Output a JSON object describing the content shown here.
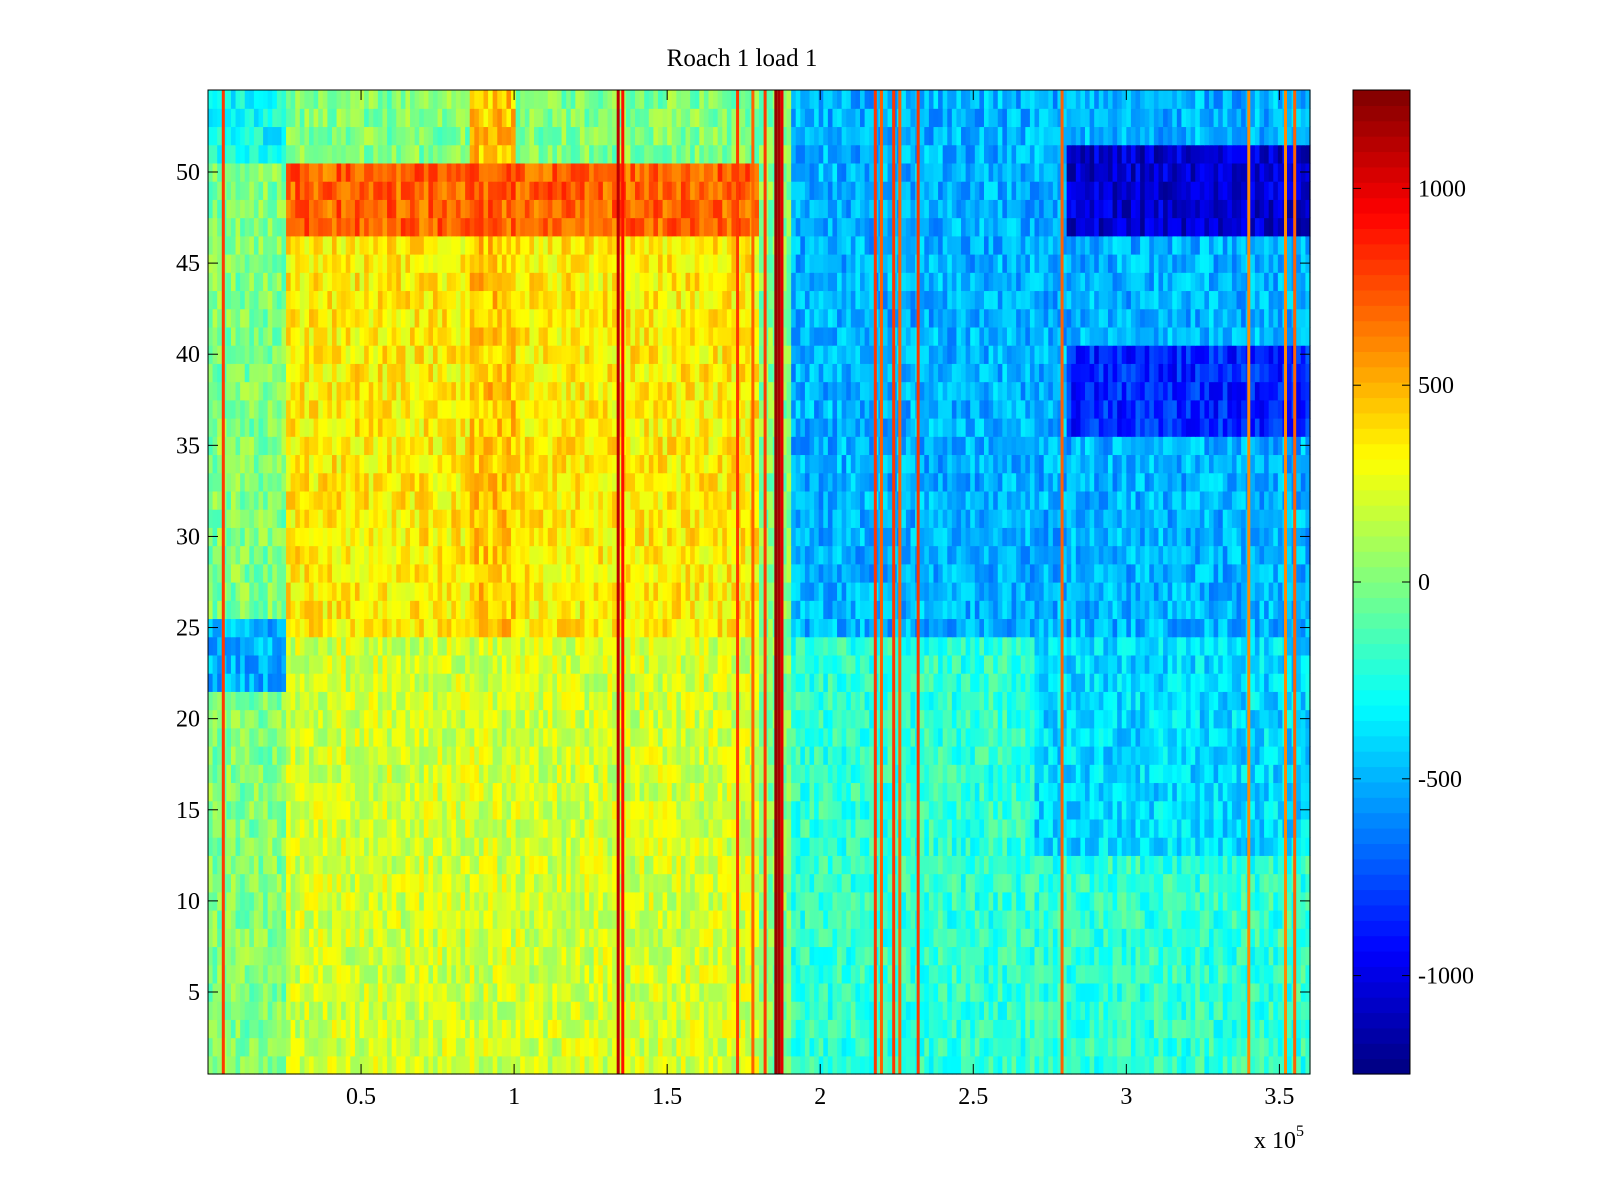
{
  "chart_data": {
    "type": "heatmap",
    "title": "Roach 1 load 1",
    "xlabel": "",
    "ylabel": "",
    "x_range": [
      0,
      360000
    ],
    "y_range": [
      0.5,
      54.5
    ],
    "x_ticks": [
      50000,
      100000,
      150000,
      200000,
      250000,
      300000,
      350000
    ],
    "x_tick_labels": [
      "0.5",
      "1",
      "1.5",
      "2",
      "2.5",
      "3",
      "3.5"
    ],
    "x_exponent_label": {
      "base": "x 10",
      "exponent": "5"
    },
    "y_ticks": [
      5,
      10,
      15,
      20,
      25,
      30,
      35,
      40,
      45,
      50
    ],
    "y_tick_labels": [
      "5",
      "10",
      "15",
      "20",
      "25",
      "30",
      "35",
      "40",
      "45",
      "50"
    ],
    "colormap": "jet",
    "clim": [
      -1250,
      1250
    ],
    "colorbar": {
      "ticks": [
        -1000,
        -500,
        0,
        500,
        1000
      ],
      "tick_labels": [
        "-1000",
        "-500",
        "0",
        "500",
        "1000"
      ]
    },
    "rows": 54,
    "regions": [
      {
        "x_from": 0,
        "x_to": 25000,
        "y_from": 1,
        "y_to": 12,
        "level": 0
      },
      {
        "x_from": 25000,
        "x_to": 180000,
        "y_from": 1,
        "y_to": 24,
        "level": 200
      },
      {
        "x_from": 190000,
        "x_to": 360000,
        "y_from": 1,
        "y_to": 24,
        "level": -200
      },
      {
        "x_from": 270000,
        "x_to": 360000,
        "y_from": 13,
        "y_to": 24,
        "level": -400
      },
      {
        "x_from": 0,
        "x_to": 25000,
        "y_from": 22,
        "y_to": 25,
        "level": -500
      },
      {
        "x_from": 25000,
        "x_to": 180000,
        "y_from": 25,
        "y_to": 46,
        "level": 350
      },
      {
        "x_from": 85000,
        "x_to": 100000,
        "y_from": 25,
        "y_to": 54,
        "level": 450
      },
      {
        "x_from": 190000,
        "x_to": 360000,
        "y_from": 25,
        "y_to": 54,
        "level": -500
      },
      {
        "x_from": 280000,
        "x_to": 360000,
        "y_from": 36,
        "y_to": 40,
        "level": -850
      },
      {
        "x_from": 280000,
        "x_to": 360000,
        "y_from": 47,
        "y_to": 51,
        "level": -1050
      },
      {
        "x_from": 25000,
        "x_to": 180000,
        "y_from": 47,
        "y_to": 50,
        "level": 700
      },
      {
        "x_from": 0,
        "x_to": 25000,
        "y_from": 51,
        "y_to": 54,
        "level": -300
      }
    ],
    "vertical_streaks": [
      {
        "x": 5000,
        "level": 800
      },
      {
        "x": 134000,
        "level": 1100
      },
      {
        "x": 135500,
        "level": 900
      },
      {
        "x": 173000,
        "level": 800
      },
      {
        "x": 178000,
        "level": 700
      },
      {
        "x": 182000,
        "level": 800
      },
      {
        "x": 185500,
        "level": 1200
      },
      {
        "x": 186500,
        "level": 1150
      },
      {
        "x": 187500,
        "level": 1000
      },
      {
        "x": 218000,
        "level": 800
      },
      {
        "x": 220000,
        "level": 700
      },
      {
        "x": 224000,
        "level": 800
      },
      {
        "x": 226000,
        "level": 700
      },
      {
        "x": 232000,
        "level": 800
      },
      {
        "x": 279000,
        "level": 700
      },
      {
        "x": 340000,
        "level": 600
      },
      {
        "x": 352000,
        "level": 600
      },
      {
        "x": 355000,
        "level": 700
      }
    ]
  }
}
